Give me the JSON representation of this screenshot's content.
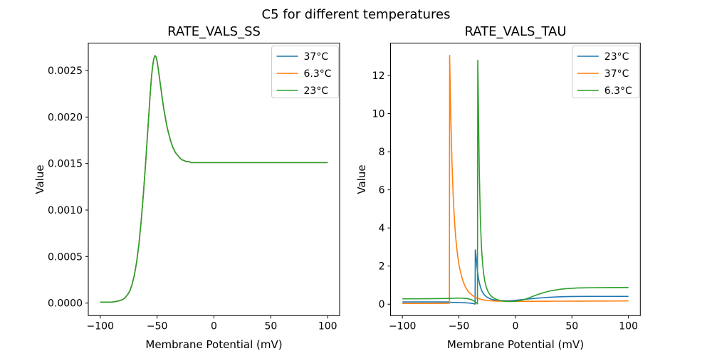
{
  "figure": {
    "title": "C5 for different temperatures"
  },
  "colors": {
    "blue": "#1f77b4",
    "orange": "#ff7f0e",
    "green": "#2ca02c",
    "text": "#000000",
    "spine": "#000000",
    "legend_border": "#cccccc",
    "background": "#ffffff"
  },
  "chart_data": [
    {
      "type": "line",
      "title": "RATE_VALS_SS",
      "xlabel": "Membrane Potential (mV)",
      "ylabel": "Value",
      "xlim": [
        -110.5,
        110.5
      ],
      "ylim": [
        -0.000135,
        0.002795
      ],
      "xticks": [
        -100,
        -50,
        0,
        50,
        100
      ],
      "xtick_labels": [
        "−100",
        "−50",
        "0",
        "50",
        "100"
      ],
      "yticks": [
        0.0,
        0.0005,
        0.001,
        0.0015,
        0.002,
        0.0025
      ],
      "ytick_labels": [
        "0.0000",
        "0.0005",
        "0.0010",
        "0.0015",
        "0.0020",
        "0.0025"
      ],
      "grid": false,
      "legend_position": "upper right",
      "note": "All three series overlap exactly; only the last-drawn (green 23°C) curve is visible.",
      "shared_points": [
        [
          -100,
          1e-05
        ],
        [
          -95,
          1e-05
        ],
        [
          -90,
          1e-05
        ],
        [
          -85,
          2e-05
        ],
        [
          -82,
          3e-05
        ],
        [
          -80,
          4e-05
        ],
        [
          -78,
          6e-05
        ],
        [
          -76,
          9e-05
        ],
        [
          -74,
          0.00013
        ],
        [
          -72,
          0.0002
        ],
        [
          -70,
          0.0003
        ],
        [
          -68,
          0.00044
        ],
        [
          -66,
          0.00063
        ],
        [
          -64,
          0.00088
        ],
        [
          -62,
          0.00118
        ],
        [
          -60,
          0.00152
        ],
        [
          -58,
          0.00189
        ],
        [
          -56,
          0.00226
        ],
        [
          -55,
          0.00242
        ],
        [
          -54,
          0.00254
        ],
        [
          -53,
          0.00262
        ],
        [
          -52,
          0.00266
        ],
        [
          -51,
          0.00265
        ],
        [
          -50,
          0.0026
        ],
        [
          -49,
          0.00252
        ],
        [
          -48,
          0.00243
        ],
        [
          -47,
          0.00234
        ],
        [
          -46,
          0.00225
        ],
        [
          -45,
          0.00216
        ],
        [
          -44,
          0.00208
        ],
        [
          -43,
          0.00201
        ],
        [
          -42,
          0.00194
        ],
        [
          -41,
          0.00188
        ],
        [
          -40,
          0.00183
        ],
        [
          -38,
          0.00174
        ],
        [
          -36,
          0.00167
        ],
        [
          -34,
          0.00162
        ],
        [
          -32,
          0.00159
        ],
        [
          -30,
          0.00156
        ],
        [
          -28,
          0.00154
        ],
        [
          -26,
          0.00153
        ],
        [
          -24,
          0.00152
        ],
        [
          -22,
          0.00152
        ],
        [
          -20,
          0.00151
        ],
        [
          -15,
          0.00151
        ],
        [
          -10,
          0.00151
        ],
        [
          -5,
          0.00151
        ],
        [
          0,
          0.00151
        ],
        [
          10,
          0.00151
        ],
        [
          20,
          0.00151
        ],
        [
          30,
          0.00151
        ],
        [
          40,
          0.00151
        ],
        [
          50,
          0.00151
        ],
        [
          60,
          0.00151
        ],
        [
          70,
          0.00151
        ],
        [
          80,
          0.00151
        ],
        [
          90,
          0.00151
        ],
        [
          100,
          0.00151
        ]
      ],
      "series": [
        {
          "name": "37°C",
          "color": "#1f77b4",
          "points": "shared"
        },
        {
          "name": "6.3°C",
          "color": "#ff7f0e",
          "points": "shared"
        },
        {
          "name": "23°C",
          "color": "#2ca02c",
          "points": "shared"
        }
      ]
    },
    {
      "type": "line",
      "title": "RATE_VALS_TAU",
      "xlabel": "Membrane Potential (mV)",
      "ylabel": "Value",
      "xlim": [
        -110.5,
        110.5
      ],
      "ylim": [
        -0.6,
        13.7
      ],
      "xticks": [
        -100,
        -50,
        0,
        50,
        100
      ],
      "xtick_labels": [
        "−100",
        "−50",
        "0",
        "50",
        "100"
      ],
      "yticks": [
        0,
        2,
        4,
        6,
        8,
        10,
        12
      ],
      "ytick_labels": [
        "0",
        "2",
        "4",
        "6",
        "8",
        "10",
        "12"
      ],
      "grid": false,
      "legend_position": "upper right",
      "series": [
        {
          "name": "23°C",
          "color": "#1f77b4",
          "peak": {
            "x": -35.5,
            "y": 2.85
          },
          "points": [
            [
              -100,
              0.12
            ],
            [
              -90,
              0.12
            ],
            [
              -80,
              0.12
            ],
            [
              -70,
              0.12
            ],
            [
              -65,
              0.12
            ],
            [
              -60,
              0.115
            ],
            [
              -58.5,
              0.11
            ],
            [
              -58,
              0.1
            ],
            [
              -55,
              0.095
            ],
            [
              -52,
              0.09
            ],
            [
              -50,
              0.088
            ],
            [
              -48,
              0.083
            ],
            [
              -46,
              0.078
            ],
            [
              -44,
              0.072
            ],
            [
              -42,
              0.065
            ],
            [
              -40,
              0.055
            ],
            [
              -39,
              0.05
            ],
            [
              -38,
              0.042
            ],
            [
              -37,
              0.03
            ],
            [
              -36.5,
              0.02
            ],
            [
              -36,
              0.01
            ],
            [
              -35.7,
              0.005
            ],
            [
              -35.5,
              2.85
            ],
            [
              -35,
              2.6
            ],
            [
              -34.5,
              2.3
            ],
            [
              -34,
              1.95
            ],
            [
              -33,
              1.48
            ],
            [
              -32,
              1.14
            ],
            [
              -31,
              0.91
            ],
            [
              -30,
              0.74
            ],
            [
              -29,
              0.62
            ],
            [
              -28,
              0.53
            ],
            [
              -27,
              0.46
            ],
            [
              -26,
              0.41
            ],
            [
              -25,
              0.365
            ],
            [
              -24,
              0.33
            ],
            [
              -23,
              0.3
            ],
            [
              -22,
              0.275
            ],
            [
              -21,
              0.255
            ],
            [
              -20,
              0.24
            ],
            [
              -18,
              0.22
            ],
            [
              -16,
              0.205
            ],
            [
              -14,
              0.195
            ],
            [
              -12,
              0.19
            ],
            [
              -10,
              0.185
            ],
            [
              -8,
              0.185
            ],
            [
              -6,
              0.185
            ],
            [
              -4,
              0.19
            ],
            [
              -2,
              0.195
            ],
            [
              0,
              0.205
            ],
            [
              3,
              0.22
            ],
            [
              6,
              0.24
            ],
            [
              9,
              0.258
            ],
            [
              12,
              0.275
            ],
            [
              15,
              0.293
            ],
            [
              18,
              0.31
            ],
            [
              21,
              0.325
            ],
            [
              24,
              0.34
            ],
            [
              27,
              0.352
            ],
            [
              30,
              0.363
            ],
            [
              35,
              0.378
            ],
            [
              40,
              0.39
            ],
            [
              45,
              0.398
            ],
            [
              50,
              0.403
            ],
            [
              60,
              0.408
            ],
            [
              70,
              0.41
            ],
            [
              80,
              0.41
            ],
            [
              90,
              0.41
            ],
            [
              100,
              0.41
            ]
          ]
        },
        {
          "name": "37°C",
          "color": "#ff7f0e",
          "peak": {
            "x": -58.2,
            "y": 13.05
          },
          "points": [
            [
              -100,
              0.04
            ],
            [
              -90,
              0.04
            ],
            [
              -80,
              0.04
            ],
            [
              -70,
              0.04
            ],
            [
              -65,
              0.045
            ],
            [
              -62,
              0.045
            ],
            [
              -60,
              0.05
            ],
            [
              -59,
              0.05
            ],
            [
              -58.4,
              0.05
            ],
            [
              -58.2,
              13.05
            ],
            [
              -58,
              12.4
            ],
            [
              -57.5,
              10.8
            ],
            [
              -57,
              9.4
            ],
            [
              -56,
              7.2
            ],
            [
              -55,
              5.6
            ],
            [
              -54,
              4.5
            ],
            [
              -53,
              3.6
            ],
            [
              -52,
              3.0
            ],
            [
              -51,
              2.5
            ],
            [
              -50,
              2.1
            ],
            [
              -49,
              1.8
            ],
            [
              -48,
              1.55
            ],
            [
              -47,
              1.33
            ],
            [
              -46,
              1.15
            ],
            [
              -45,
              1.0
            ],
            [
              -44,
              0.88
            ],
            [
              -43,
              0.78
            ],
            [
              -42,
              0.69
            ],
            [
              -41,
              0.62
            ],
            [
              -40,
              0.56
            ],
            [
              -38,
              0.46
            ],
            [
              -36,
              0.38
            ],
            [
              -34,
              0.325
            ],
            [
              -32,
              0.28
            ],
            [
              -30,
              0.25
            ],
            [
              -28,
              0.225
            ],
            [
              -26,
              0.205
            ],
            [
              -24,
              0.19
            ],
            [
              -22,
              0.18
            ],
            [
              -20,
              0.17
            ],
            [
              -15,
              0.16
            ],
            [
              -10,
              0.155
            ],
            [
              -5,
              0.15
            ],
            [
              0,
              0.15
            ],
            [
              10,
              0.15
            ],
            [
              20,
              0.152
            ],
            [
              30,
              0.155
            ],
            [
              40,
              0.158
            ],
            [
              50,
              0.16
            ],
            [
              60,
              0.162
            ],
            [
              70,
              0.165
            ],
            [
              80,
              0.165
            ],
            [
              90,
              0.168
            ],
            [
              100,
              0.17
            ]
          ]
        },
        {
          "name": "6.3°C",
          "color": "#2ca02c",
          "peak": {
            "x": -33.3,
            "y": 12.8
          },
          "points": [
            [
              -100,
              0.28
            ],
            [
              -90,
              0.28
            ],
            [
              -80,
              0.285
            ],
            [
              -70,
              0.29
            ],
            [
              -65,
              0.295
            ],
            [
              -60,
              0.3
            ],
            [
              -57,
              0.305
            ],
            [
              -55,
              0.31
            ],
            [
              -53,
              0.315
            ],
            [
              -51,
              0.32
            ],
            [
              -49,
              0.32
            ],
            [
              -47,
              0.315
            ],
            [
              -45,
              0.31
            ],
            [
              -43,
              0.295
            ],
            [
              -41,
              0.27
            ],
            [
              -40,
              0.255
            ],
            [
              -39,
              0.235
            ],
            [
              -38,
              0.21
            ],
            [
              -37,
              0.18
            ],
            [
              -36,
              0.14
            ],
            [
              -35.5,
              0.12
            ],
            [
              -35,
              0.095
            ],
            [
              -34.5,
              0.07
            ],
            [
              -34,
              0.045
            ],
            [
              -33.6,
              0.02
            ],
            [
              -33.3,
              12.8
            ],
            [
              -33,
              11.6
            ],
            [
              -32.5,
              9.3
            ],
            [
              -32,
              7.1
            ],
            [
              -31,
              4.4
            ],
            [
              -30,
              2.95
            ],
            [
              -29,
              2.1
            ],
            [
              -28,
              1.55
            ],
            [
              -27,
              1.18
            ],
            [
              -26,
              0.94
            ],
            [
              -25,
              0.77
            ],
            [
              -24,
              0.64
            ],
            [
              -23,
              0.54
            ],
            [
              -22,
              0.465
            ],
            [
              -21,
              0.405
            ],
            [
              -20,
              0.355
            ],
            [
              -18,
              0.285
            ],
            [
              -16,
              0.235
            ],
            [
              -14,
              0.2
            ],
            [
              -12,
              0.175
            ],
            [
              -10,
              0.155
            ],
            [
              -8,
              0.145
            ],
            [
              -6,
              0.14
            ],
            [
              -4,
              0.14
            ],
            [
              -2,
              0.145
            ],
            [
              0,
              0.155
            ],
            [
              3,
              0.18
            ],
            [
              6,
              0.22
            ],
            [
              9,
              0.27
            ],
            [
              12,
              0.33
            ],
            [
              15,
              0.4
            ],
            [
              18,
              0.47
            ],
            [
              21,
              0.53
            ],
            [
              24,
              0.59
            ],
            [
              27,
              0.64
            ],
            [
              30,
              0.685
            ],
            [
              33,
              0.72
            ],
            [
              36,
              0.75
            ],
            [
              40,
              0.785
            ],
            [
              45,
              0.815
            ],
            [
              50,
              0.835
            ],
            [
              55,
              0.85
            ],
            [
              60,
              0.858
            ],
            [
              70,
              0.868
            ],
            [
              80,
              0.872
            ],
            [
              90,
              0.875
            ],
            [
              100,
              0.875
            ]
          ]
        }
      ]
    }
  ]
}
